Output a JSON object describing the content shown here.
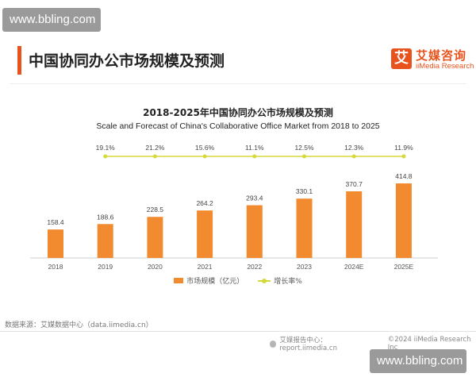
{
  "watermark": "www.bbling.com",
  "header": {
    "title": "中国协同办公市场规模及预测",
    "logo_mark": "艾",
    "logo_name": "艾媒咨询",
    "logo_en": "iiMedia Research"
  },
  "legend": {
    "bar": "市场规模（亿元）",
    "line": "增长率%"
  },
  "source": "数据来源：艾媒数据中心（data.iimedia.cn）",
  "footer": {
    "report": "艾媒报告中心：report.iimedia.cn",
    "copyright": "©2024  iiMedia Research  Inc"
  },
  "colors": {
    "accent": "#e8531d",
    "bar": "#f28a2f",
    "line": "#d5d93a"
  },
  "chart_data": {
    "type": "bar",
    "title": "2018-2025年中国协同办公市场规模及预测",
    "subtitle": "Scale and Forecast of China's Collaborative Office Market from 2018 to 2025",
    "categories": [
      "2018",
      "2019",
      "2020",
      "2021",
      "2022",
      "2023",
      "2024E",
      "2025E"
    ],
    "series": [
      {
        "name": "市场规模（亿元）",
        "type": "bar",
        "values": [
          158.4,
          188.6,
          228.5,
          264.2,
          293.4,
          330.1,
          370.7,
          414.8
        ]
      },
      {
        "name": "增长率%",
        "type": "line",
        "values": [
          null,
          19.1,
          21.2,
          15.6,
          11.1,
          12.5,
          12.3,
          11.9
        ]
      }
    ],
    "value_labels": [
      "158.4",
      "188.6",
      "228.5",
      "264.2",
      "293.4",
      "330.1",
      "370.7",
      "414.8"
    ],
    "rate_labels": [
      "",
      "19.1%",
      "21.2%",
      "15.6%",
      "11.1%",
      "12.5%",
      "12.3%",
      "11.9%"
    ],
    "grid": false,
    "legend_position": "bottom"
  }
}
